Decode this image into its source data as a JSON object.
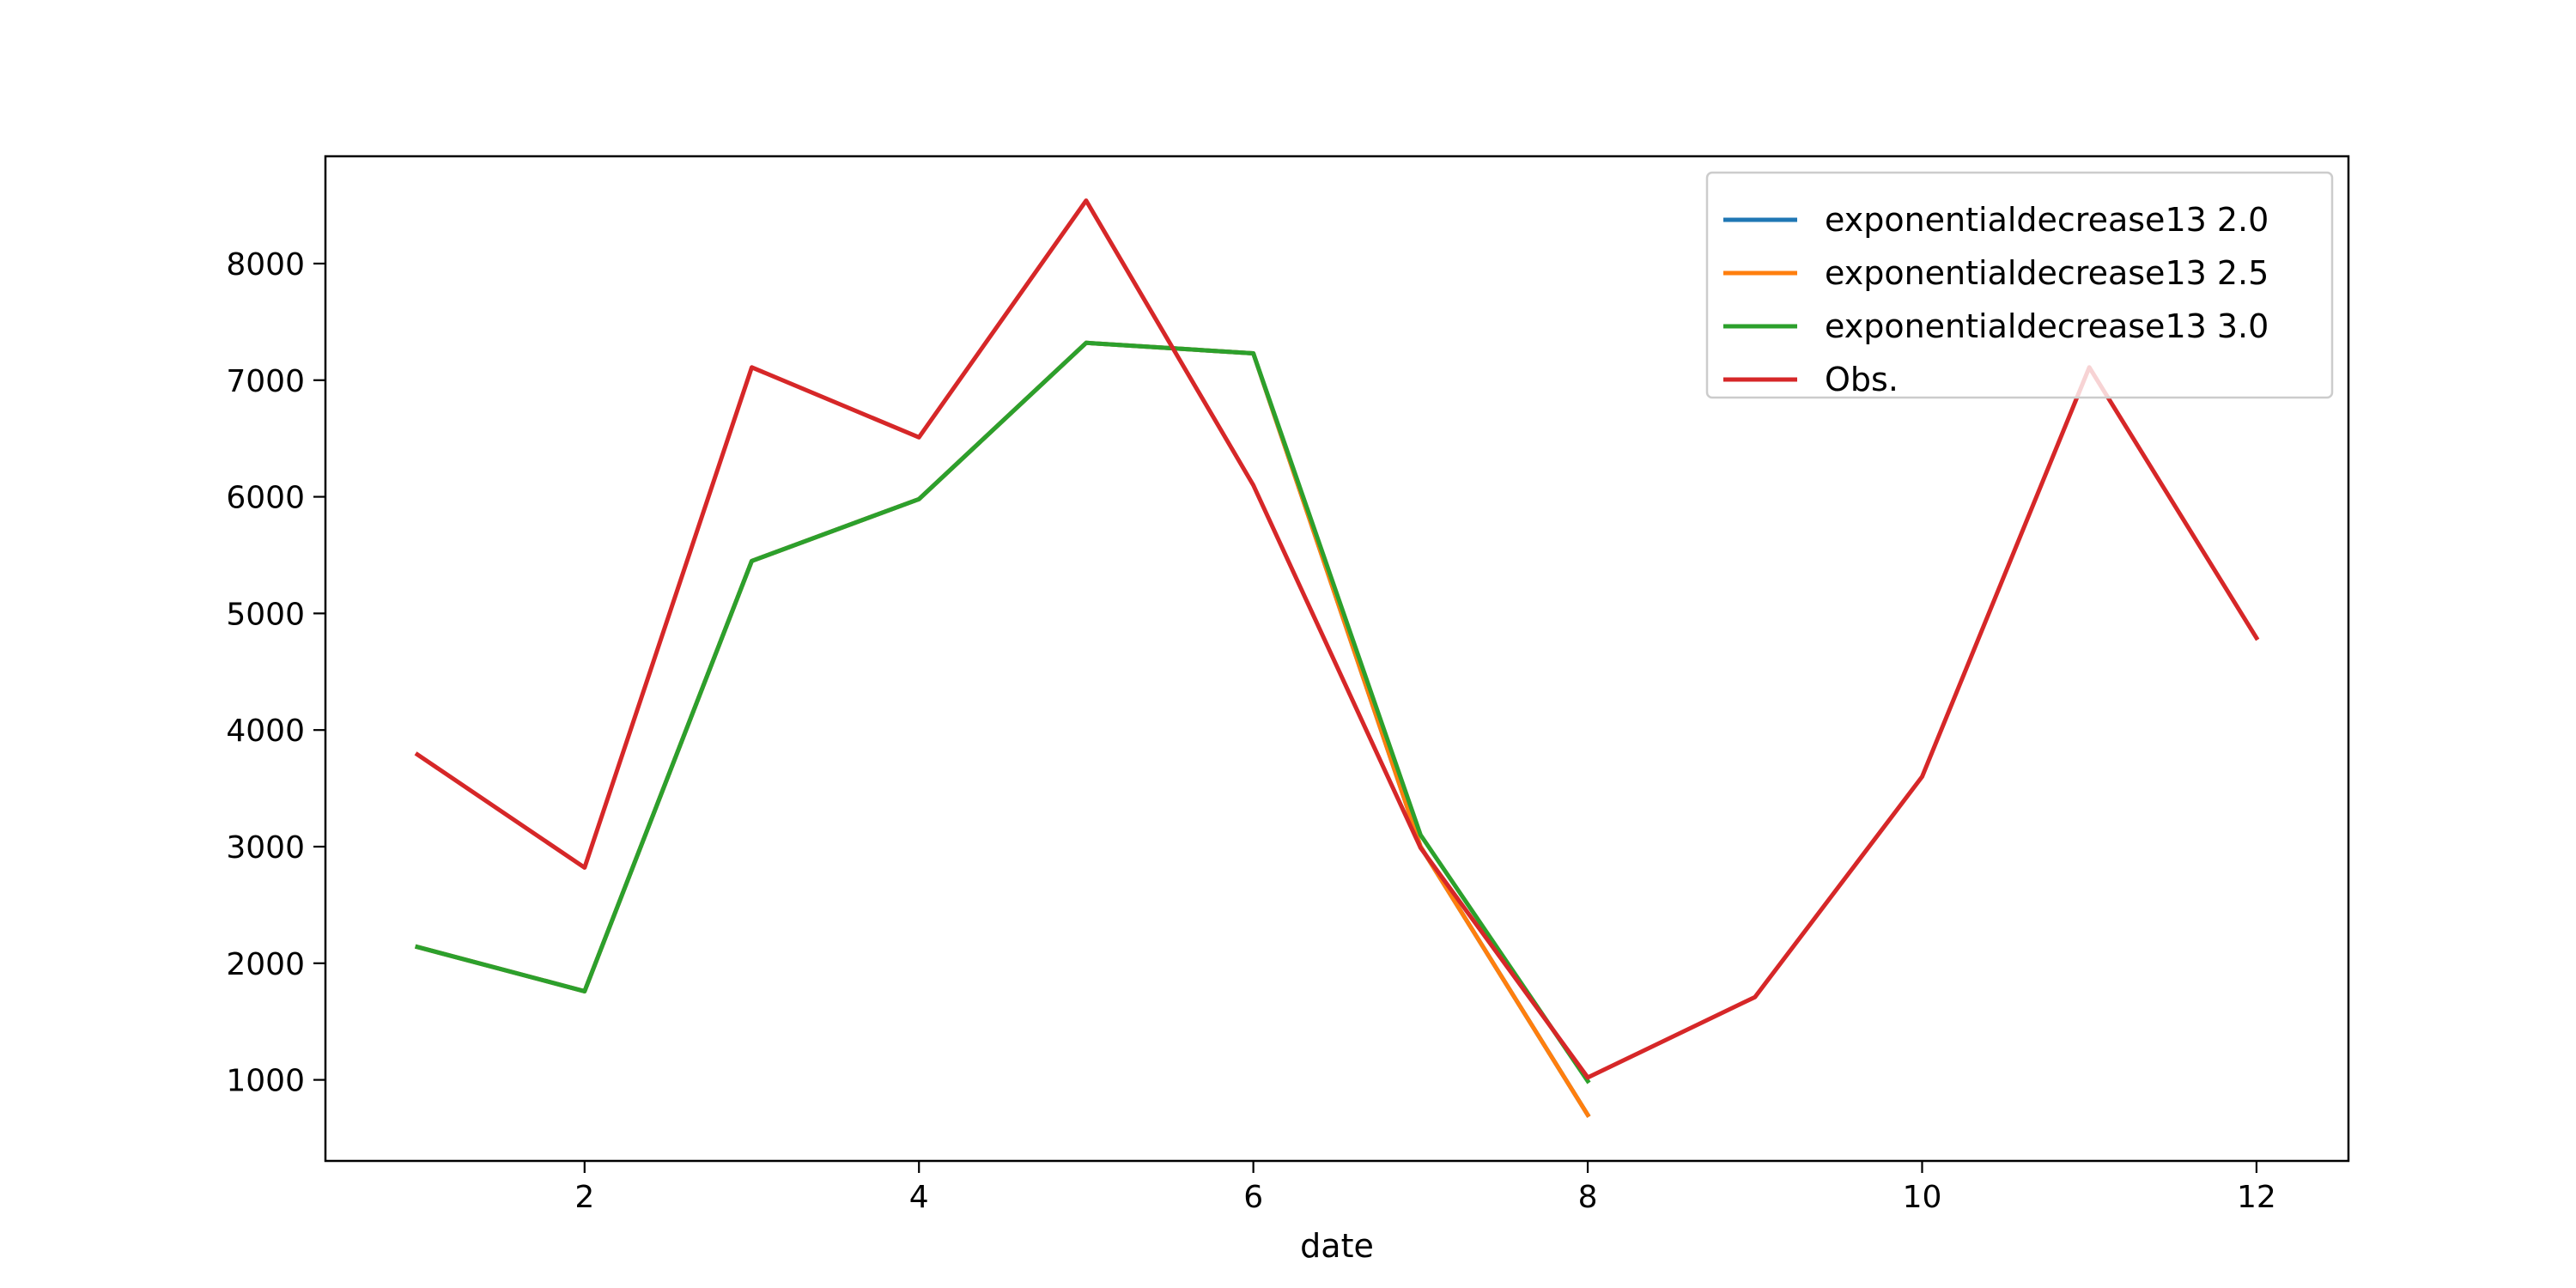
{
  "chart_data": {
    "type": "line",
    "xlabel": "date",
    "ylabel": "",
    "title": "",
    "xlim": [
      0.45,
      12.55
    ],
    "ylim": [
      305,
      8920
    ],
    "xticks": [
      2,
      4,
      6,
      8,
      10,
      12
    ],
    "yticks": [
      1000,
      2000,
      3000,
      4000,
      5000,
      6000,
      7000,
      8000
    ],
    "grid": false,
    "legend_position": "top-right",
    "series": [
      {
        "name": "exponentialdecrease13 2.0",
        "color": "#1f77b4",
        "x": [
          1,
          2,
          3,
          4,
          5,
          6,
          7,
          8
        ],
        "y": [
          2140,
          1760,
          5450,
          5980,
          7320,
          7230,
          3000,
          700
        ]
      },
      {
        "name": "exponentialdecrease13 2.5",
        "color": "#ff7f0e",
        "x": [
          1,
          2,
          3,
          4,
          5,
          6,
          7,
          8
        ],
        "y": [
          2140,
          1760,
          5450,
          5980,
          7320,
          7230,
          3000,
          700
        ]
      },
      {
        "name": "exponentialdecrease13 3.0",
        "color": "#2ca02c",
        "x": [
          1,
          2,
          3,
          4,
          5,
          6,
          7,
          8
        ],
        "y": [
          2140,
          1760,
          5450,
          5980,
          7320,
          7230,
          3100,
          990
        ]
      },
      {
        "name": "Obs.",
        "color": "#d62728",
        "x": [
          1,
          2,
          3,
          4,
          5,
          6,
          7,
          8,
          9,
          10,
          11,
          12
        ],
        "y": [
          3790,
          2820,
          7110,
          6510,
          8540,
          6100,
          2990,
          1020,
          1710,
          3600,
          7110,
          4790
        ]
      }
    ]
  }
}
